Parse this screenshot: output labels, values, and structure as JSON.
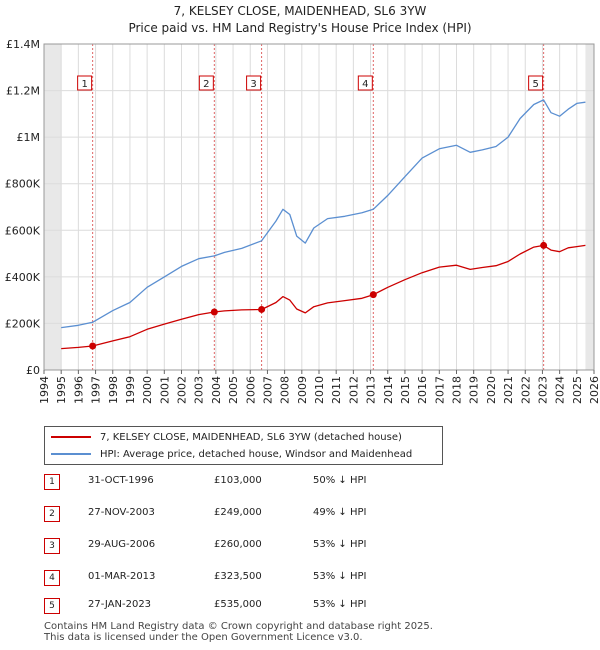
{
  "chart_data": {
    "type": "line",
    "title": "7, KELSEY CLOSE, MAIDENHEAD, SL6 3YW",
    "subtitle": "Price paid vs. HM Land Registry's House Price Index (HPI)",
    "xlim": [
      1994,
      2026
    ],
    "ylim": [
      0,
      1400000
    ],
    "yticks": [
      {
        "value": 0,
        "label": "£0"
      },
      {
        "value": 200000,
        "label": "£200K"
      },
      {
        "value": 400000,
        "label": "£400K"
      },
      {
        "value": 600000,
        "label": "£600K"
      },
      {
        "value": 800000,
        "label": "£800K"
      },
      {
        "value": 1000000,
        "label": "£1M"
      },
      {
        "value": 1200000,
        "label": "£1.2M"
      },
      {
        "value": 1400000,
        "label": "£1.4M"
      }
    ],
    "xticks": [
      "1994",
      "1995",
      "1996",
      "1997",
      "1998",
      "1999",
      "2000",
      "2001",
      "2002",
      "2003",
      "2004",
      "2005",
      "2006",
      "2007",
      "2008",
      "2009",
      "2010",
      "2011",
      "2012",
      "2013",
      "2014",
      "2015",
      "2016",
      "2017",
      "2018",
      "2019",
      "2020",
      "2021",
      "2022",
      "2023",
      "2024",
      "2025",
      "2026"
    ],
    "data_start": 1995.0,
    "data_end": 2025.5,
    "series": [
      {
        "name": "7, KELSEY CLOSE, MAIDENHEAD, SL6 3YW (detached house)",
        "color": "#cc0000",
        "points": [
          [
            1995.0,
            92000
          ],
          [
            1996.0,
            97000
          ],
          [
            1996.83,
            103000
          ],
          [
            1998.0,
            125000
          ],
          [
            1999.0,
            143000
          ],
          [
            2000.0,
            175000
          ],
          [
            2001.0,
            197000
          ],
          [
            2002.0,
            218000
          ],
          [
            2003.0,
            238000
          ],
          [
            2003.91,
            249000
          ],
          [
            2004.5,
            254000
          ],
          [
            2005.5,
            258000
          ],
          [
            2006.66,
            260000
          ],
          [
            2007.5,
            290000
          ],
          [
            2007.9,
            315000
          ],
          [
            2008.3,
            300000
          ],
          [
            2008.7,
            262000
          ],
          [
            2009.2,
            245000
          ],
          [
            2009.7,
            272000
          ],
          [
            2010.5,
            288000
          ],
          [
            2011.5,
            298000
          ],
          [
            2012.5,
            308000
          ],
          [
            2013.16,
            323500
          ],
          [
            2014.0,
            355000
          ],
          [
            2015.0,
            388000
          ],
          [
            2016.0,
            418000
          ],
          [
            2017.0,
            442000
          ],
          [
            2018.0,
            450000
          ],
          [
            2018.8,
            432000
          ],
          [
            2019.5,
            440000
          ],
          [
            2020.3,
            448000
          ],
          [
            2021.0,
            466000
          ],
          [
            2021.7,
            498000
          ],
          [
            2022.5,
            528000
          ],
          [
            2023.07,
            535000
          ],
          [
            2023.5,
            515000
          ],
          [
            2024.0,
            508000
          ],
          [
            2024.5,
            525000
          ],
          [
            2025.0,
            530000
          ],
          [
            2025.5,
            535000
          ]
        ]
      },
      {
        "name": "HPI: Average price, detached house, Windsor and Maidenhead",
        "color": "#5b8fd1",
        "points": [
          [
            1995.0,
            182000
          ],
          [
            1996.0,
            192000
          ],
          [
            1996.83,
            205000
          ],
          [
            1998.0,
            255000
          ],
          [
            1999.0,
            290000
          ],
          [
            2000.0,
            355000
          ],
          [
            2001.0,
            400000
          ],
          [
            2002.0,
            445000
          ],
          [
            2003.0,
            478000
          ],
          [
            2003.91,
            490000
          ],
          [
            2004.5,
            505000
          ],
          [
            2005.5,
            522000
          ],
          [
            2006.66,
            555000
          ],
          [
            2007.5,
            640000
          ],
          [
            2007.9,
            690000
          ],
          [
            2008.3,
            668000
          ],
          [
            2008.7,
            575000
          ],
          [
            2009.2,
            545000
          ],
          [
            2009.7,
            610000
          ],
          [
            2010.5,
            650000
          ],
          [
            2011.5,
            660000
          ],
          [
            2012.5,
            675000
          ],
          [
            2013.16,
            690000
          ],
          [
            2014.0,
            750000
          ],
          [
            2015.0,
            830000
          ],
          [
            2016.0,
            910000
          ],
          [
            2017.0,
            950000
          ],
          [
            2018.0,
            965000
          ],
          [
            2018.8,
            935000
          ],
          [
            2019.5,
            945000
          ],
          [
            2020.3,
            960000
          ],
          [
            2021.0,
            1000000
          ],
          [
            2021.7,
            1080000
          ],
          [
            2022.5,
            1140000
          ],
          [
            2023.07,
            1160000
          ],
          [
            2023.5,
            1105000
          ],
          [
            2024.0,
            1090000
          ],
          [
            2024.5,
            1120000
          ],
          [
            2025.0,
            1145000
          ],
          [
            2025.5,
            1150000
          ]
        ]
      }
    ],
    "sales": [
      {
        "id": "1",
        "date": "31-OCT-1996",
        "year": 1996.83,
        "price": 103000,
        "price_label": "£103,000",
        "hpi_label": "50% ↓ HPI"
      },
      {
        "id": "2",
        "date": "27-NOV-2003",
        "year": 2003.91,
        "price": 249000,
        "price_label": "£249,000",
        "hpi_label": "49% ↓ HPI"
      },
      {
        "id": "3",
        "date": "29-AUG-2006",
        "year": 2006.66,
        "price": 260000,
        "price_label": "£260,000",
        "hpi_label": "53% ↓ HPI"
      },
      {
        "id": "4",
        "date": "01-MAR-2013",
        "year": 2013.16,
        "price": 323500,
        "price_label": "£323,500",
        "hpi_label": "53% ↓ HPI"
      },
      {
        "id": "5",
        "date": "27-JAN-2023",
        "year": 2023.07,
        "price": 535000,
        "price_label": "£535,000",
        "hpi_label": "53% ↓ HPI"
      }
    ]
  },
  "legend": {
    "items": [
      {
        "label": "7, KELSEY CLOSE, MAIDENHEAD, SL6 3YW (detached house)",
        "color": "#cc0000"
      },
      {
        "label": "HPI: Average price, detached house, Windsor and Maidenhead",
        "color": "#5b8fd1"
      }
    ]
  },
  "footer": {
    "line1": "Contains HM Land Registry data © Crown copyright and database right 2025.",
    "line2": "This data is licensed under the Open Government Licence v3.0."
  }
}
